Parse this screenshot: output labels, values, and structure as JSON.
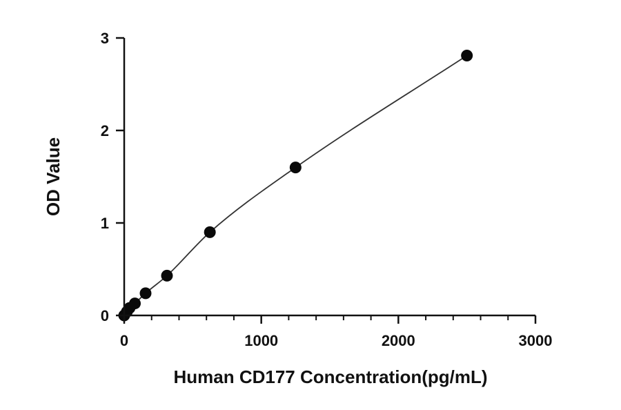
{
  "chart_data": {
    "type": "scatter",
    "title": "",
    "xlabel": "Human CD177 Concentration(pg/mL)",
    "ylabel": "OD Value",
    "xlim": [
      0,
      3000
    ],
    "ylim": [
      0,
      3
    ],
    "x_ticks": [
      0,
      1000,
      2000,
      3000
    ],
    "y_ticks": [
      0,
      1,
      2,
      3
    ],
    "x_tick_labels": [
      "0",
      "1000",
      "2000",
      "3000"
    ],
    "y_tick_labels": [
      "0",
      "1",
      "2",
      "3"
    ],
    "x_minor_step": 200,
    "grid": false,
    "legend": "none",
    "series": [
      {
        "x": [
          0,
          19.5,
          39,
          78,
          156,
          312,
          625,
          1250,
          2500
        ],
        "y": [
          0.0,
          0.04,
          0.08,
          0.13,
          0.24,
          0.43,
          0.9,
          1.6,
          2.81
        ],
        "fit_curve": true,
        "color": "#0a0a0a"
      }
    ]
  }
}
